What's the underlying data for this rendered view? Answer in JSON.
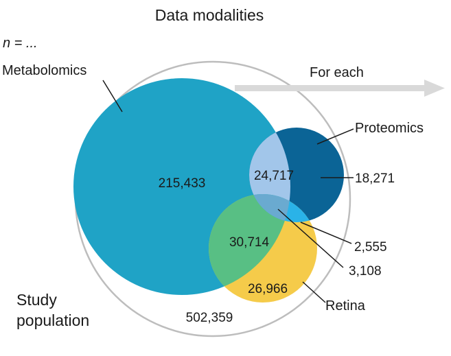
{
  "title": "Data modalities",
  "n_label": "n = ...",
  "arrow_label": "For each",
  "study_population": {
    "label_line1": "Study",
    "label_line2": "population",
    "count": "502,359"
  },
  "sets": {
    "metabolomics": {
      "label": "Metabolomics",
      "only": "215,433",
      "color": "#1FA3C6"
    },
    "proteomics": {
      "label": "Proteomics",
      "only": "18,271",
      "color": "#0B6496"
    },
    "retina": {
      "label": "Retina",
      "only": "26,966",
      "color": "#F5CB4A"
    }
  },
  "overlaps": {
    "metabolomics_proteomics": {
      "value": "24,717",
      "color": "#A2C6EA"
    },
    "metabolomics_retina": {
      "value": "30,714",
      "color": "#58BF84"
    },
    "proteomics_retina": {
      "value": "2,555",
      "color": "#2AB3E8"
    },
    "all_three": {
      "value": "3,108",
      "color": "#6AAAD0"
    }
  },
  "colors": {
    "outer_ring": "#BDBDBD",
    "arrow": "#D9D9D9",
    "leader": "#1a1a1a"
  }
}
